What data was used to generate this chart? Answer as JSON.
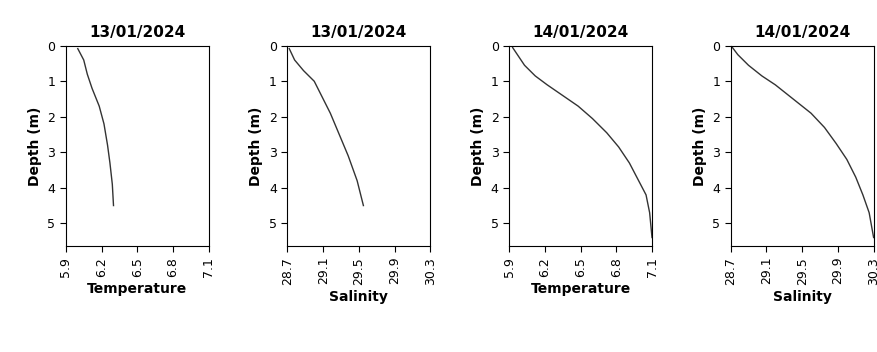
{
  "panels": [
    {
      "title": "13/01/2024",
      "xlabel": "Temperature",
      "xlim": [
        5.9,
        7.1
      ],
      "xticks": [
        5.9,
        6.2,
        6.5,
        6.8,
        7.1
      ],
      "xticklabels": [
        "5.9",
        "6.2",
        "6.5",
        "6.8",
        "7.1"
      ],
      "prof_x": [
        6.0,
        6.05,
        6.08,
        6.12,
        6.18,
        6.22,
        6.25,
        6.27,
        6.29,
        6.3
      ],
      "prof_y": [
        0.08,
        0.4,
        0.8,
        1.2,
        1.7,
        2.2,
        2.8,
        3.3,
        3.9,
        4.5
      ]
    },
    {
      "title": "13/01/2024",
      "xlabel": "Salinity",
      "xlim": [
        28.7,
        30.3
      ],
      "xticks": [
        28.7,
        29.1,
        29.5,
        29.9,
        30.3
      ],
      "xticklabels": [
        "28.7",
        "29.1",
        "29.5",
        "29.9",
        "30.3"
      ],
      "prof_x": [
        28.72,
        28.78,
        28.88,
        29.0,
        29.08,
        29.18,
        29.28,
        29.38,
        29.48,
        29.55
      ],
      "prof_y": [
        0.08,
        0.4,
        0.7,
        1.0,
        1.4,
        1.9,
        2.5,
        3.1,
        3.8,
        4.5
      ]
    },
    {
      "title": "14/01/2024",
      "xlabel": "Temperature",
      "xlim": [
        5.9,
        7.1
      ],
      "xticks": [
        5.9,
        6.2,
        6.5,
        6.8,
        7.1
      ],
      "xticklabels": [
        "5.9",
        "6.2",
        "6.5",
        "6.8",
        "7.1"
      ],
      "prof_x": [
        5.93,
        5.97,
        6.03,
        6.12,
        6.22,
        6.35,
        6.48,
        6.6,
        6.72,
        6.82,
        6.91,
        6.98,
        7.05,
        7.08,
        7.1
      ],
      "prof_y": [
        0.05,
        0.25,
        0.55,
        0.85,
        1.1,
        1.4,
        1.7,
        2.05,
        2.45,
        2.85,
        3.3,
        3.75,
        4.2,
        4.7,
        5.4
      ]
    },
    {
      "title": "14/01/2024",
      "xlabel": "Salinity",
      "xlim": [
        28.7,
        30.3
      ],
      "xticks": [
        28.7,
        29.1,
        29.5,
        29.9,
        30.3
      ],
      "xticklabels": [
        "28.7",
        "29.1",
        "29.5",
        "29.9",
        "30.3"
      ],
      "prof_x": [
        28.72,
        28.78,
        28.9,
        29.05,
        29.2,
        29.4,
        29.6,
        29.75,
        29.88,
        30.0,
        30.1,
        30.18,
        30.25,
        30.3
      ],
      "prof_y": [
        0.05,
        0.25,
        0.55,
        0.85,
        1.1,
        1.5,
        1.9,
        2.3,
        2.75,
        3.2,
        3.7,
        4.2,
        4.7,
        5.4
      ]
    }
  ],
  "ylim": [
    5.65,
    0
  ],
  "yticks": [
    0,
    1,
    2,
    3,
    4,
    5
  ],
  "ylabel": "Depth (m)",
  "line_color": "#333333",
  "title_color": "#000000",
  "title_fontsize": 11,
  "label_fontsize": 10,
  "tick_fontsize": 9,
  "bg_color": "#ffffff"
}
